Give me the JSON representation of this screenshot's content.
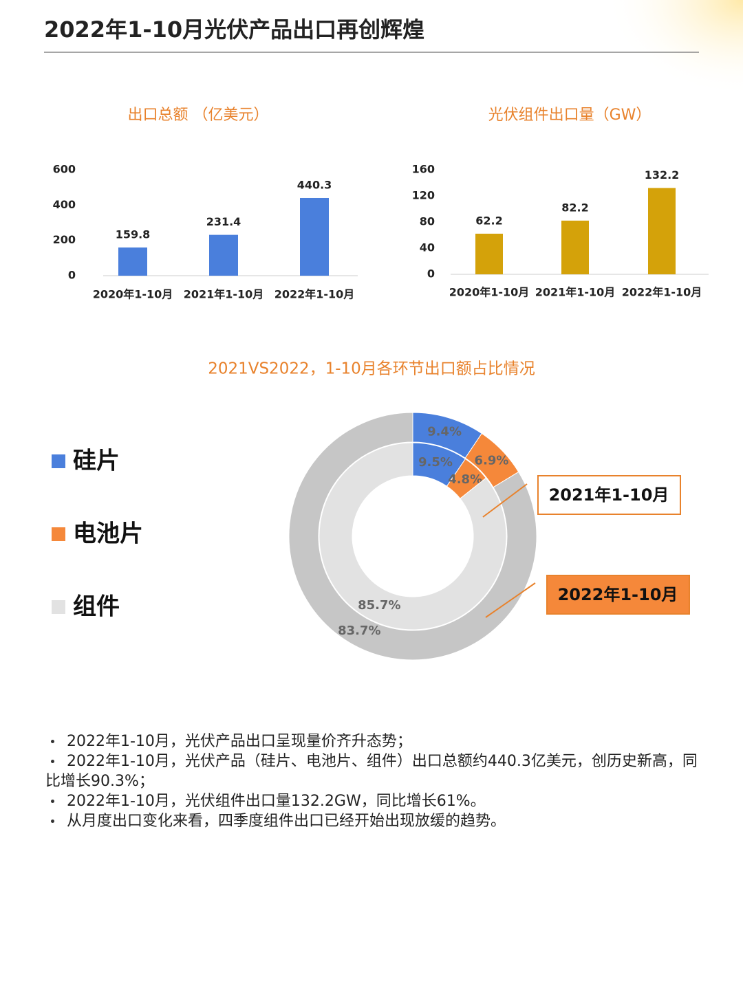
{
  "header": {
    "title": "2022年1-10月光伏产品出口再创辉煌"
  },
  "chart_data": [
    {
      "type": "bar",
      "title": "出口总额 （亿美元）",
      "categories": [
        "2020年1-10月",
        "2021年1-10月",
        "2022年1-10月"
      ],
      "values": [
        159.8,
        231.4,
        440.3
      ],
      "color": "#4a7fdc",
      "ylim": [
        0,
        600
      ],
      "yticks": [
        0,
        200,
        400,
        600
      ]
    },
    {
      "type": "bar",
      "title": "光伏组件出口量（GW）",
      "categories": [
        "2020年1-10月",
        "2021年1-10月",
        "2022年1-10月"
      ],
      "values": [
        62.2,
        82.2,
        132.2
      ],
      "color": "#d4a20a",
      "ylim": [
        0,
        160
      ],
      "yticks": [
        0,
        40,
        80,
        120,
        160
      ]
    },
    {
      "type": "donut",
      "title": "2021VS2022，1-10月各环节出口额占比情况",
      "categories": [
        "硅片",
        "电池片",
        "组件"
      ],
      "series": [
        {
          "name": "2021年1-10月",
          "colors": [
            "#4a7fdc",
            "#f5883a",
            "#e2e2e2"
          ],
          "values": [
            9.5,
            4.8,
            85.7
          ],
          "value_labels": [
            "9.5%",
            "4.8%",
            "85.7%"
          ]
        },
        {
          "name": "2022年1-10月",
          "colors": [
            "#4a7fdc",
            "#f5883a",
            "#c6c6c6"
          ],
          "values": [
            9.4,
            6.9,
            83.7
          ],
          "value_labels": [
            "9.4%",
            "6.9%",
            "83.7%"
          ]
        }
      ]
    }
  ],
  "notes": [
    "2022年1-10月，光伏产品出口呈现量价齐升态势；",
    "2022年1-10月，光伏产品（硅片、电池片、组件）出口总额约440.3亿美元，创历史新高，同比增长90.3%；",
    "2022年1-10月，光伏组件出口量132.2GW，同比增长61%。",
    "从月度出口变化来看，四季度组件出口已经开始出现放缓的趋势。"
  ]
}
